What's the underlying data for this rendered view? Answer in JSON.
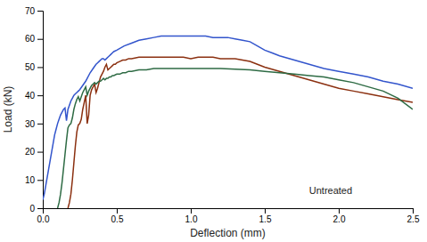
{
  "chart_data": {
    "type": "line",
    "xlabel": "Deflection (mm)",
    "ylabel": "Load (kN)",
    "annotations": [
      {
        "text": "Untreated",
        "x": 1.8,
        "y": 5
      }
    ],
    "xlim": [
      0,
      2.5
    ],
    "ylim": [
      0,
      70
    ],
    "xticks": [
      {
        "value": 0.0,
        "label": "0.0"
      },
      0.5,
      {
        "value": 1.0,
        "label": "1.0"
      },
      1.5,
      {
        "value": 2.0,
        "label": "2.0"
      },
      2.5
    ],
    "yticks": [
      0,
      10,
      20,
      30,
      40,
      50,
      60,
      70
    ],
    "grid": false,
    "series": [
      {
        "color": "#3355cc",
        "x": [
          0.0,
          0.01,
          0.02,
          0.03,
          0.04,
          0.05,
          0.06,
          0.07,
          0.08,
          0.09,
          0.1,
          0.11,
          0.12,
          0.13,
          0.14,
          0.15,
          0.16,
          0.17,
          0.18,
          0.19,
          0.2,
          0.21,
          0.22,
          0.23,
          0.24,
          0.25,
          0.27,
          0.29,
          0.3,
          0.32,
          0.34,
          0.36,
          0.37,
          0.38,
          0.39,
          0.4,
          0.41,
          0.42,
          0.43,
          0.44,
          0.45,
          0.46,
          0.47,
          0.48,
          0.5,
          0.55,
          0.6,
          0.65,
          0.7,
          0.75,
          0.8,
          0.85,
          0.9,
          0.95,
          1.0,
          1.05,
          1.1,
          1.15,
          1.2,
          1.25,
          1.3,
          1.35,
          1.4,
          1.45,
          1.5,
          1.55,
          1.6,
          1.7,
          1.8,
          1.9,
          2.0,
          2.1,
          2.2,
          2.3,
          2.4,
          2.5
        ],
        "values": [
          3.0,
          5.0,
          8.0,
          11.0,
          14.0,
          17.0,
          20.0,
          23.0,
          26.0,
          28.0,
          30.0,
          31.5,
          33.0,
          34.0,
          35.0,
          35.5,
          31.0,
          35.0,
          36.5,
          38.0,
          39.0,
          40.0,
          40.5,
          41.0,
          41.5,
          42.0,
          43.5,
          45.0,
          46.0,
          48.0,
          49.5,
          51.0,
          51.5,
          52.0,
          52.5,
          53.0,
          53.0,
          52.5,
          53.0,
          53.5,
          54.0,
          54.5,
          55.0,
          55.5,
          56.0,
          57.5,
          58.5,
          59.5,
          60.0,
          60.5,
          61.0,
          61.0,
          61.0,
          61.0,
          61.0,
          61.0,
          61.0,
          60.5,
          60.5,
          60.5,
          60.0,
          59.5,
          59.0,
          57.5,
          56.0,
          55.0,
          54.0,
          52.5,
          51.0,
          49.5,
          48.5,
          47.5,
          46.5,
          45.0,
          44.0,
          42.5
        ]
      },
      {
        "color": "#8B3010",
        "x": [
          0.17,
          0.18,
          0.19,
          0.2,
          0.21,
          0.22,
          0.23,
          0.24,
          0.25,
          0.26,
          0.27,
          0.28,
          0.29,
          0.3,
          0.31,
          0.32,
          0.33,
          0.34,
          0.35,
          0.36,
          0.37,
          0.38,
          0.39,
          0.4,
          0.41,
          0.42,
          0.43,
          0.44,
          0.45,
          0.46,
          0.47,
          0.48,
          0.49,
          0.5,
          0.52,
          0.54,
          0.56,
          0.58,
          0.6,
          0.65,
          0.7,
          0.75,
          0.8,
          0.85,
          0.9,
          0.95,
          1.0,
          1.05,
          1.1,
          1.15,
          1.2,
          1.25,
          1.3,
          1.35,
          1.4,
          1.45,
          1.5,
          1.6,
          1.7,
          1.8,
          1.9,
          2.0,
          2.1,
          2.2,
          2.3,
          2.4,
          2.5
        ],
        "values": [
          0.0,
          2.0,
          5.0,
          10.0,
          16.0,
          22.0,
          27.0,
          29.5,
          30.0,
          31.5,
          35.0,
          37.5,
          40.0,
          30.0,
          33.0,
          40.0,
          42.0,
          43.0,
          44.0,
          41.0,
          42.5,
          44.5,
          46.5,
          47.5,
          48.5,
          50.0,
          51.0,
          49.0,
          49.5,
          50.0,
          50.5,
          51.0,
          51.0,
          51.5,
          52.0,
          52.5,
          52.5,
          53.0,
          53.0,
          53.5,
          53.5,
          53.5,
          53.5,
          53.5,
          53.5,
          53.5,
          53.0,
          53.5,
          53.5,
          53.5,
          53.0,
          53.0,
          53.0,
          52.5,
          52.0,
          51.0,
          50.0,
          48.5,
          47.0,
          45.5,
          44.0,
          42.5,
          41.5,
          40.5,
          39.5,
          38.5,
          37.5
        ]
      },
      {
        "color": "#2E6B44",
        "x": [
          0.1,
          0.11,
          0.12,
          0.13,
          0.14,
          0.15,
          0.16,
          0.17,
          0.18,
          0.19,
          0.2,
          0.21,
          0.22,
          0.23,
          0.24,
          0.25,
          0.26,
          0.27,
          0.28,
          0.29,
          0.3,
          0.31,
          0.32,
          0.33,
          0.34,
          0.35,
          0.36,
          0.37,
          0.38,
          0.39,
          0.4,
          0.41,
          0.42,
          0.43,
          0.44,
          0.45,
          0.46,
          0.47,
          0.48,
          0.5,
          0.52,
          0.54,
          0.56,
          0.58,
          0.6,
          0.65,
          0.7,
          0.75,
          0.8,
          0.85,
          0.9,
          0.95,
          1.0,
          1.05,
          1.1,
          1.2,
          1.3,
          1.4,
          1.5,
          1.6,
          1.7,
          1.8,
          1.9,
          2.0,
          2.1,
          2.2,
          2.3,
          2.4,
          2.5
        ],
        "values": [
          0.0,
          2.0,
          5.0,
          9.0,
          14.0,
          19.0,
          24.0,
          28.5,
          29.5,
          30.0,
          32.0,
          35.0,
          37.0,
          38.5,
          39.5,
          38.0,
          39.5,
          41.0,
          42.0,
          43.0,
          40.0,
          41.5,
          42.5,
          43.5,
          44.0,
          44.5,
          44.0,
          44.5,
          45.0,
          45.0,
          45.5,
          46.0,
          45.5,
          46.0,
          46.0,
          46.5,
          46.5,
          47.0,
          47.0,
          47.5,
          47.5,
          48.0,
          48.0,
          48.5,
          48.5,
          49.0,
          49.0,
          49.5,
          49.5,
          49.5,
          49.5,
          49.5,
          49.5,
          49.5,
          49.5,
          49.5,
          49.3,
          49.0,
          48.5,
          48.0,
          47.5,
          47.0,
          46.5,
          45.5,
          44.5,
          43.0,
          41.5,
          39.0,
          35.0
        ]
      }
    ]
  }
}
